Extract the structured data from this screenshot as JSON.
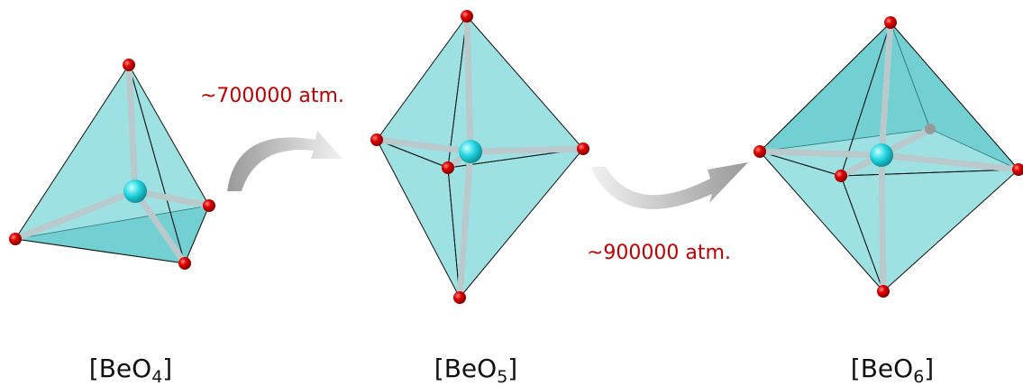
{
  "structures": [
    {
      "label": "[BeO",
      "subscript": "4",
      "label_end": "]"
    },
    {
      "label": "[BeO",
      "subscript": "5",
      "label_end": "]"
    },
    {
      "label": "[BeO",
      "subscript": "6",
      "label_end": "]"
    }
  ],
  "transitions": [
    {
      "pressure": "~700000 atm."
    },
    {
      "pressure": "~900000 atm."
    }
  ]
}
